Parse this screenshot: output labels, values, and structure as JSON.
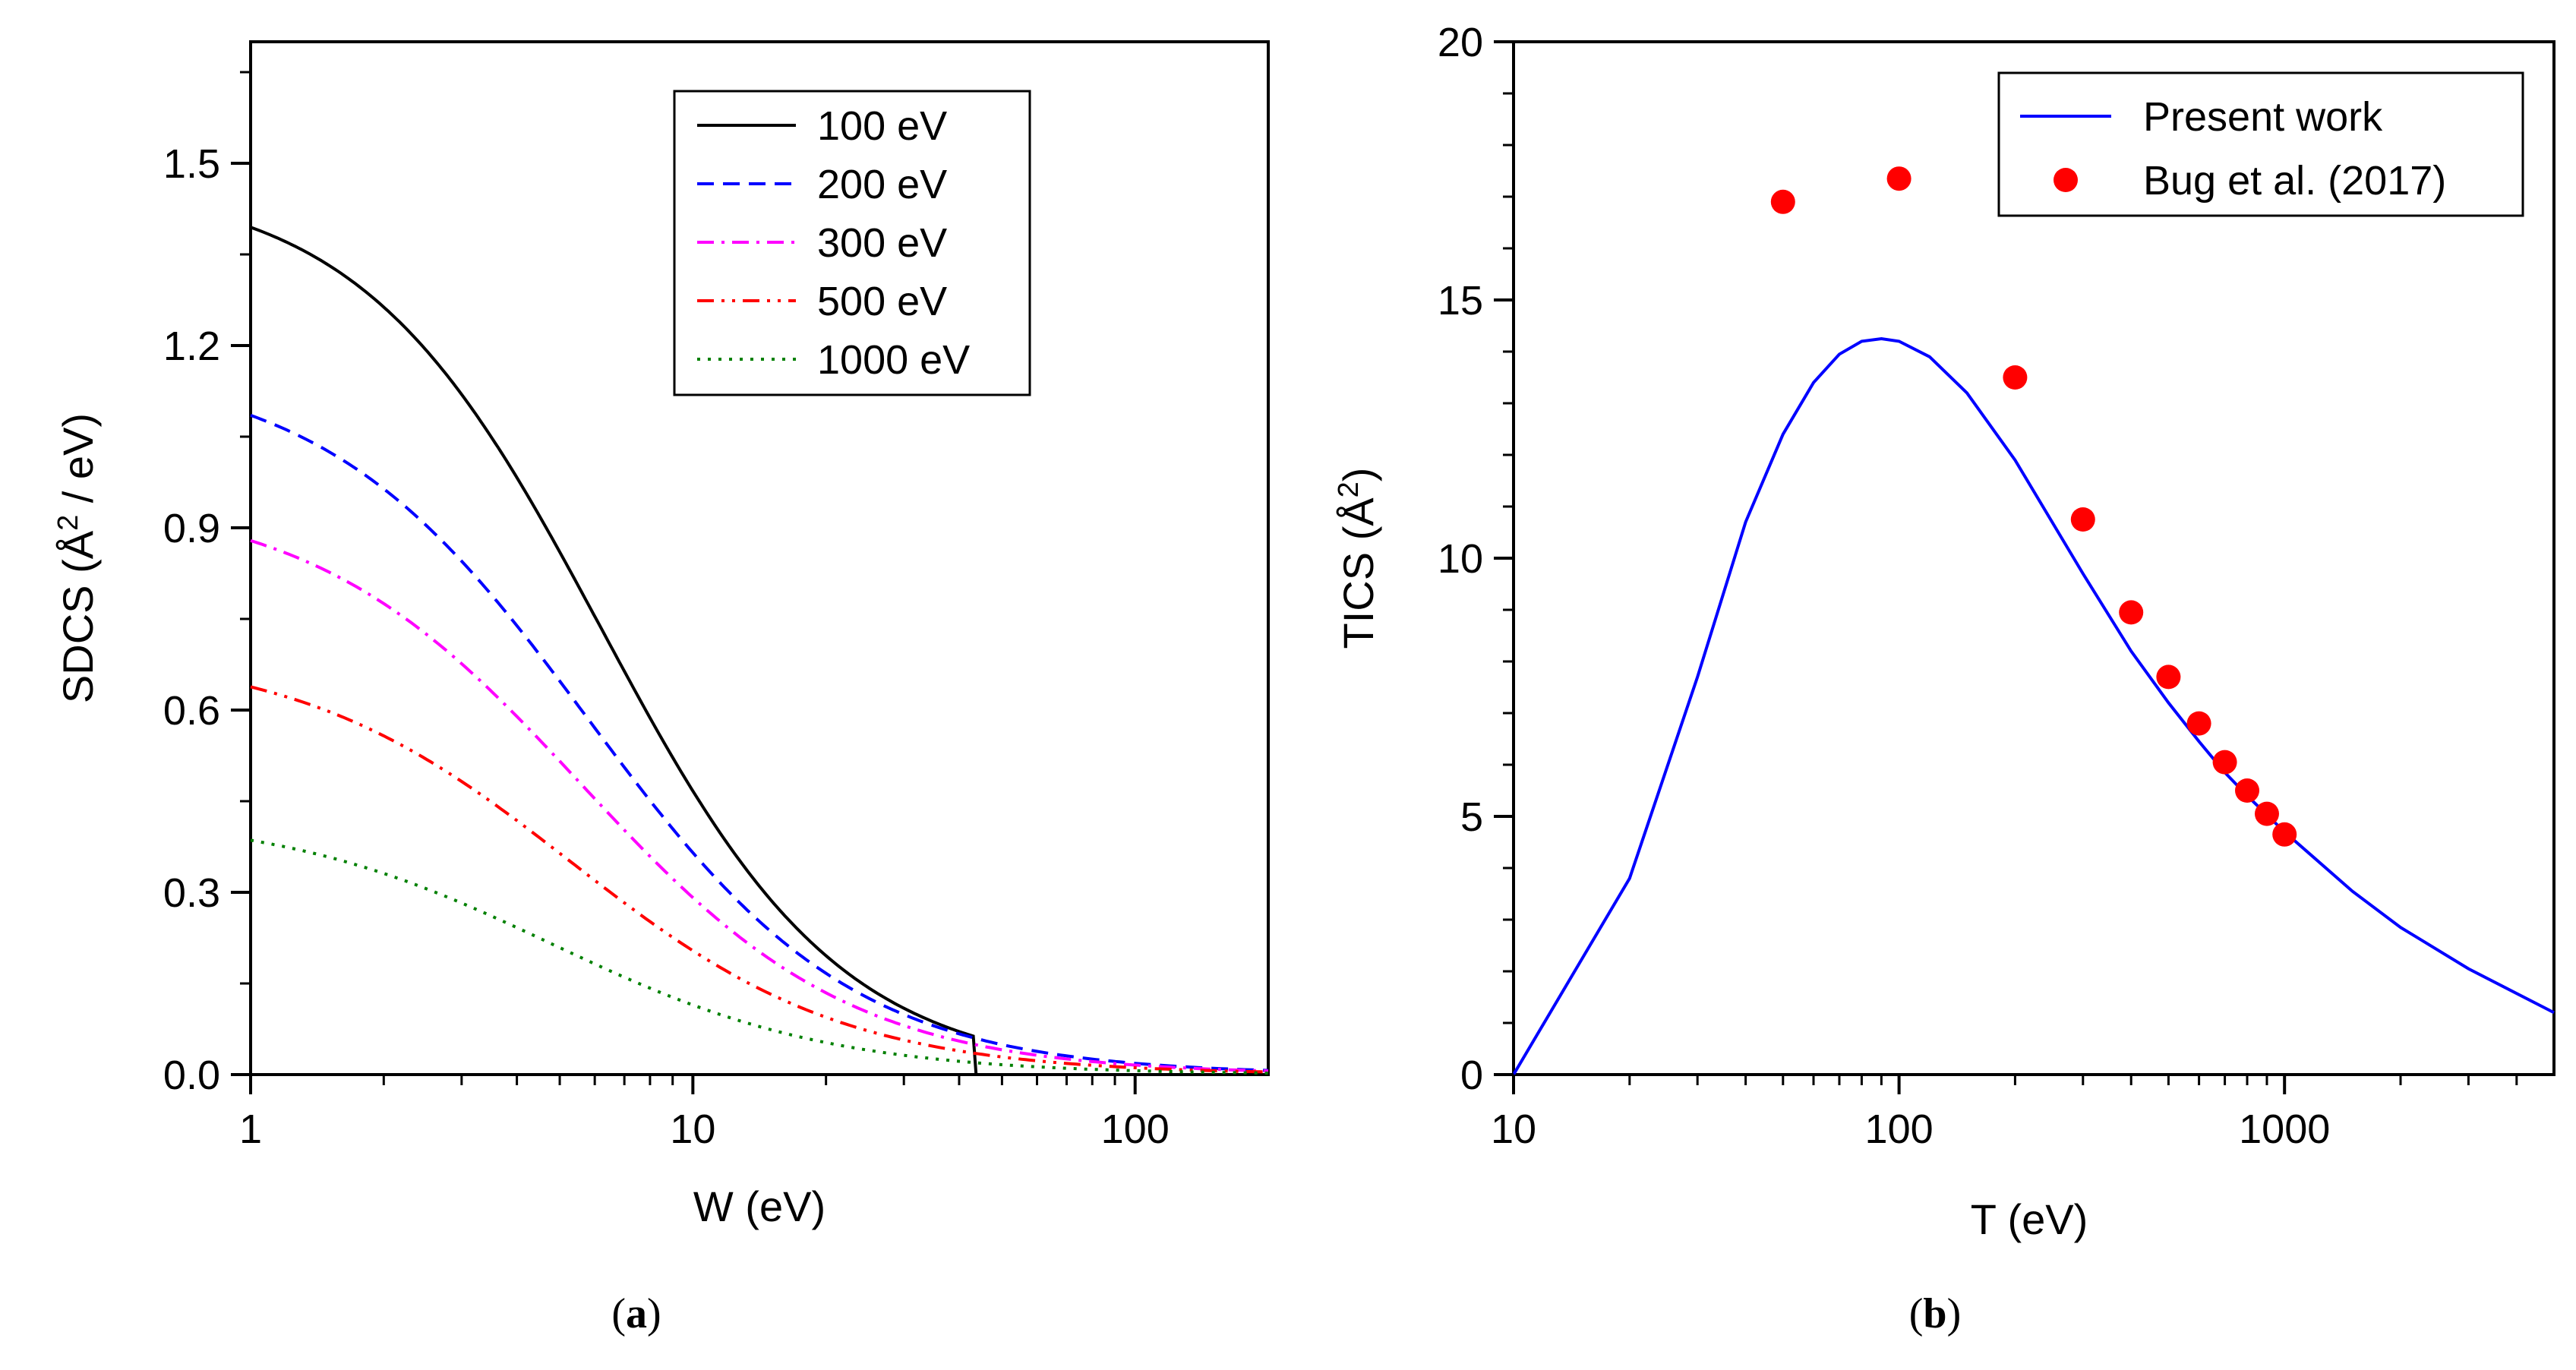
{
  "chart_data": [
    {
      "panel": "a",
      "type": "line",
      "caption_letter": "a",
      "xlabel": "W (eV)",
      "ylabel": {
        "pre": "SDCS (",
        "unit": "Å",
        "sup": "2",
        "post": " / eV)"
      },
      "xscale": "log",
      "xlim": [
        1,
        200
      ],
      "ylim": [
        0,
        1.7
      ],
      "xticks": [
        {
          "v": 1,
          "label": "1"
        },
        {
          "v": 10,
          "label": "10"
        },
        {
          "v": 100,
          "label": "100"
        }
      ],
      "yticks": [
        {
          "v": 0.0,
          "label": "0.0"
        },
        {
          "v": 0.3,
          "label": "0.3"
        },
        {
          "v": 0.6,
          "label": "0.6"
        },
        {
          "v": 0.9,
          "label": "0.9"
        },
        {
          "v": 1.2,
          "label": "1.2"
        },
        {
          "v": 1.5,
          "label": "1.5"
        }
      ],
      "legend_position": "top-right",
      "series": [
        {
          "name": "100 eV",
          "color": "#000000",
          "style": "solid",
          "end": 45,
          "A": 1.47,
          "W0": 6.2,
          "p": 1.6
        },
        {
          "name": "200 eV",
          "color": "#0000ff",
          "style": "dashed",
          "end": 200,
          "A": 1.17,
          "W0": 5.8,
          "p": 1.45
        },
        {
          "name": "300 eV",
          "color": "#ff00ff",
          "style": "dashdot",
          "end": 200,
          "A": 0.955,
          "W0": 5.6,
          "p": 1.42
        },
        {
          "name": "500 eV",
          "color": "#ff0000",
          "style": "dashdotdot",
          "end": 200,
          "A": 0.7,
          "W0": 5.3,
          "p": 1.4
        },
        {
          "name": "1000 eV",
          "color": "#008000",
          "style": "dotted",
          "end": 200,
          "A": 0.43,
          "W0": 4.8,
          "p": 1.38
        }
      ]
    },
    {
      "panel": "b",
      "type": "line+scatter",
      "caption_letter": "b",
      "xlabel": "T (eV)",
      "ylabel": {
        "pre": "TICS (",
        "unit": "Å",
        "sup": "2",
        "post": ")"
      },
      "xscale": "log",
      "xlim": [
        10,
        5000
      ],
      "ylim": [
        0,
        20
      ],
      "xticks": [
        {
          "v": 10,
          "label": "10"
        },
        {
          "v": 100,
          "label": "100"
        },
        {
          "v": 1000,
          "label": "1000"
        }
      ],
      "yticks": [
        {
          "v": 0,
          "label": "0"
        },
        {
          "v": 5,
          "label": "5"
        },
        {
          "v": 10,
          "label": "10"
        },
        {
          "v": 15,
          "label": "15"
        },
        {
          "v": 20,
          "label": "20"
        }
      ],
      "legend_position": "top-right",
      "line": {
        "name": "Present work",
        "color": "#0000ff",
        "x": [
          10,
          20,
          30,
          40,
          50,
          60,
          70,
          80,
          90,
          100,
          120,
          150,
          200,
          300,
          400,
          500,
          600,
          700,
          800,
          1000,
          1500,
          2000,
          3000,
          5000
        ],
        "y": [
          0.0,
          3.8,
          7.7,
          10.7,
          12.4,
          13.4,
          13.95,
          14.2,
          14.25,
          14.2,
          13.9,
          13.2,
          11.9,
          9.7,
          8.2,
          7.2,
          6.45,
          5.85,
          5.4,
          4.7,
          3.55,
          2.85,
          2.05,
          1.2
        ]
      },
      "scatter": {
        "name": "Bug et al. (2017)",
        "color": "#ff0000",
        "x": [
          50,
          100,
          200,
          300,
          400,
          500,
          600,
          700,
          800,
          900,
          1000
        ],
        "y": [
          16.9,
          17.35,
          13.5,
          10.75,
          8.95,
          7.7,
          6.8,
          6.05,
          5.5,
          5.05,
          4.65
        ]
      }
    }
  ]
}
